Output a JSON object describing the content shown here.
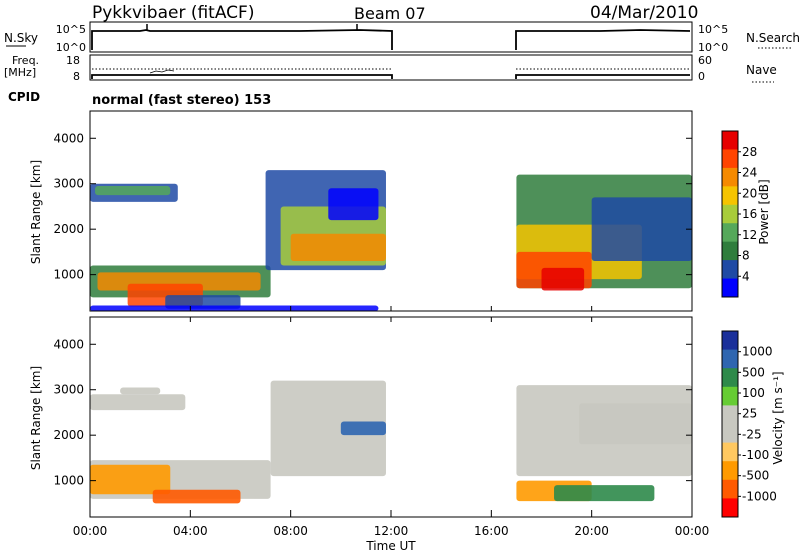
{
  "header": {
    "station": "Pykkvibaer (fitACF)",
    "beam": "Beam 07",
    "date": "04/Mar/2010",
    "cpid": "CPID",
    "program": "normal (fast stereo) 153"
  },
  "noise_panel": {
    "left_label": "N.Sky",
    "left_ticks": [
      "10^5",
      "10^0"
    ],
    "right_ticks": [
      "10^5",
      "10^0"
    ],
    "right_label": "N.Search"
  },
  "freq_panel": {
    "left_label_1": "Freq.",
    "left_label_2": "[MHz]",
    "left_ticks": [
      "18",
      "8"
    ],
    "right_ticks": [
      "60",
      "0"
    ],
    "right_label": "Nave"
  },
  "colors": {
    "power_scale": [
      "#0000ff",
      "#1f4aa5",
      "#2f7d3c",
      "#55a85a",
      "#a8cc3a",
      "#f5c400",
      "#f58a00",
      "#ff4400",
      "#e60000"
    ],
    "velocity_scale": [
      "#ff0000",
      "#ff5a00",
      "#ff9a00",
      "#ffc860",
      "#c8c8c0",
      "#c8c8c0",
      "#66cc33",
      "#2e8a4a",
      "#2f66b0",
      "#1a2f9a"
    ]
  },
  "chart_data": [
    {
      "type": "heatmap",
      "name": "power",
      "ylabel": "Slant Range [km]",
      "yticks": [
        "1000",
        "2000",
        "3000",
        "4000"
      ],
      "ylim": [
        200,
        4600
      ],
      "colorbar_label": "Power [dB]",
      "colorbar_ticks": [
        "4",
        "8",
        "12",
        "16",
        "20",
        "24",
        "28"
      ],
      "data_gap_utc": [
        [
          12.0,
          17.0
        ]
      ]
    },
    {
      "type": "heatmap",
      "name": "velocity",
      "ylabel": "Slant Range [km]",
      "yticks": [
        "1000",
        "2000",
        "3000",
        "4000"
      ],
      "ylim": [
        200,
        4600
      ],
      "colorbar_label": "Velocity [m s⁻¹]",
      "colorbar_ticks": [
        "1000",
        "500",
        "100",
        "25",
        "-25",
        "-100",
        "-500",
        "-1000"
      ],
      "xlabel": "Time UT",
      "xticks": [
        "00:00",
        "04:00",
        "08:00",
        "12:00",
        "16:00",
        "20:00",
        "00:00"
      ],
      "xlim": [
        0,
        24
      ]
    }
  ]
}
